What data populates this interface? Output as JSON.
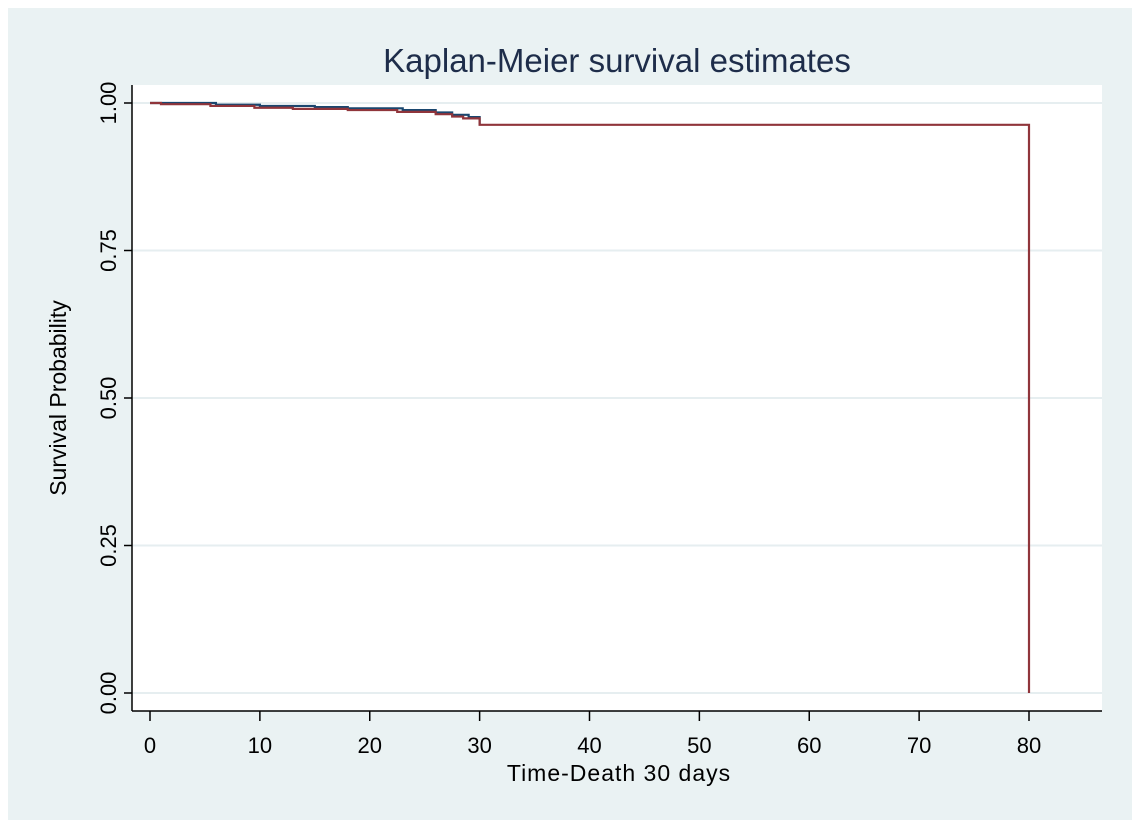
{
  "chart_data": {
    "type": "line",
    "step": true,
    "title": "Kaplan-Meier survival estimates",
    "xlabel": "Time-Death 30 days",
    "ylabel": "Survival Probability",
    "xlim": [
      -1.5,
      86
    ],
    "ylim": [
      0,
      1
    ],
    "xticks": [
      0,
      10,
      20,
      30,
      40,
      50,
      60,
      70,
      80
    ],
    "xtick_labels": [
      "0",
      "10",
      "20",
      "30",
      "40",
      "50",
      "60",
      "70",
      "80"
    ],
    "yticks": [
      0,
      0.25,
      0.5,
      0.75,
      1
    ],
    "ytick_labels": [
      "0.00",
      "0.25",
      "0.50",
      "0.75",
      "1.00"
    ],
    "grid": "horizontal",
    "legend": "none",
    "series": [
      {
        "color": "#1a476f",
        "x": [
          0,
          6,
          10,
          15,
          18,
          23,
          26,
          27.5,
          29,
          30
        ],
        "y": [
          1.0,
          0.997,
          0.995,
          0.993,
          0.991,
          0.988,
          0.984,
          0.98,
          0.976,
          0.963
        ]
      },
      {
        "color": "#90353b",
        "x": [
          0,
          1,
          5.5,
          9.5,
          13,
          18,
          22.5,
          26,
          27.5,
          28.5,
          30,
          80,
          80
        ],
        "y": [
          1.0,
          0.998,
          0.995,
          0.992,
          0.99,
          0.988,
          0.985,
          0.981,
          0.977,
          0.974,
          0.963,
          0.963,
          0.0
        ]
      }
    ]
  }
}
